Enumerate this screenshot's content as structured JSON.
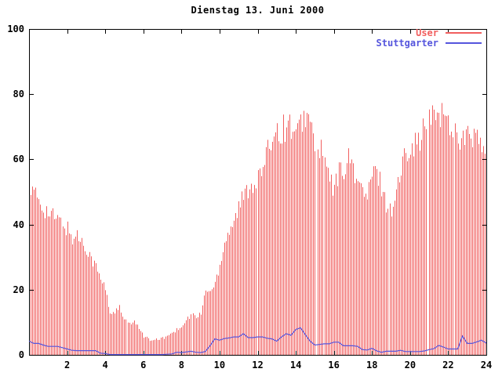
{
  "window": {
    "background": "#ffffff",
    "axis_color": "#000000",
    "text_color": "#000000"
  },
  "chart_data": {
    "type": "bar",
    "title": "Dienstag 13. Juni 2000",
    "xlabel": "",
    "ylabel": "",
    "x_unit": "hour of day",
    "xlim": [
      0,
      24
    ],
    "ylim": [
      0,
      100
    ],
    "x_ticks": [
      2,
      4,
      6,
      8,
      10,
      12,
      14,
      16,
      18,
      20,
      22,
      24
    ],
    "y_ticks": [
      0,
      20,
      40,
      60,
      80,
      100
    ],
    "grid": false,
    "legend_position": "top-right-inside",
    "sample_start_hour": 0,
    "sample_step_hours": 0.25,
    "missing_sample_hours": [
      15.08,
      20.92
    ],
    "series": [
      {
        "name": "User",
        "type": "impulses",
        "color": "#f15f5f",
        "values": [
          53,
          51,
          49,
          47,
          45,
          44,
          43,
          42,
          40,
          37,
          38,
          36,
          34,
          31,
          28,
          24,
          21,
          13,
          14,
          15,
          11,
          10,
          10,
          9,
          6,
          5,
          4.5,
          5,
          5.5,
          6,
          7,
          8,
          9,
          11,
          13,
          12,
          13,
          21,
          20,
          23,
          29,
          36,
          40,
          43,
          47,
          50,
          53,
          55,
          56,
          59,
          64,
          71,
          72,
          71,
          73,
          73,
          69,
          73,
          77,
          73,
          68,
          65,
          62,
          55,
          53,
          58,
          60,
          62,
          60,
          55,
          52,
          50,
          57,
          58,
          54,
          48,
          46,
          52,
          58,
          65,
          68,
          67,
          69,
          72,
          74,
          76,
          78,
          76,
          74,
          72,
          70,
          69,
          69,
          70,
          68,
          66,
          62
        ]
      },
      {
        "name": "Stuttgarter",
        "type": "line",
        "color": "#5555dd",
        "values": [
          4.2,
          3.5,
          3.5,
          3.0,
          2.6,
          2.6,
          2.6,
          2.2,
          1.8,
          1.4,
          1.3,
          1.3,
          1.3,
          1.3,
          1.3,
          0.5,
          0.4,
          0.1,
          0.1,
          0.1,
          0.1,
          0.1,
          0.1,
          0.1,
          0.1,
          0.1,
          0.1,
          0.1,
          0.1,
          0.2,
          0.3,
          0.8,
          0.7,
          0.9,
          1.1,
          0.8,
          0.7,
          1.0,
          2.8,
          4.9,
          4.5,
          5.0,
          5.2,
          5.5,
          5.5,
          6.5,
          5.3,
          5.3,
          5.5,
          5.5,
          5.1,
          4.9,
          4.2,
          5.5,
          6.5,
          6.0,
          7.8,
          8.3,
          6.2,
          4.2,
          3.0,
          3.2,
          3.4,
          3.4,
          3.9,
          3.9,
          2.8,
          2.8,
          2.8,
          2.6,
          1.6,
          1.5,
          2.0,
          1.2,
          0.8,
          1.1,
          1.1,
          1.1,
          1.4,
          1.0,
          1.0,
          1.0,
          1.0,
          1.2,
          1.6,
          1.9,
          2.9,
          2.4,
          1.8,
          1.8,
          1.8,
          5.8,
          3.5,
          3.5,
          4.0,
          4.5,
          3.6
        ]
      }
    ]
  }
}
